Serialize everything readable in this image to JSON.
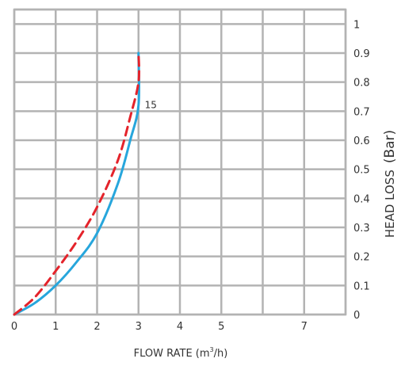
{
  "chart_data": {
    "type": "line",
    "title": "",
    "xlabel": "FLOW RATE (m",
    "xlabel_sup": "3",
    "xlabel_tail": "/h)",
    "ylabel": "HEAD LOSS",
    "ylabel_unit": "(Bar)",
    "xlim": [
      0,
      8
    ],
    "ylim": [
      0,
      1.05
    ],
    "x_ticks": [
      {
        "value": 0,
        "label": "0"
      },
      {
        "value": 1,
        "label": "1"
      },
      {
        "value": 2,
        "label": "2"
      },
      {
        "value": 3,
        "label": "3"
      },
      {
        "value": 4,
        "label": "4"
      },
      {
        "value": 5,
        "label": "5"
      },
      {
        "value": 7,
        "label": "7"
      }
    ],
    "y_ticks": [
      {
        "value": 0,
        "label": "0"
      },
      {
        "value": 0.1,
        "label": "0.1"
      },
      {
        "value": 0.2,
        "label": "0.2"
      },
      {
        "value": 0.3,
        "label": "0.3"
      },
      {
        "value": 0.4,
        "label": "0.4"
      },
      {
        "value": 0.5,
        "label": "0.5"
      },
      {
        "value": 0.6,
        "label": "0.6"
      },
      {
        "value": 0.7,
        "label": "0.7"
      },
      {
        "value": 0.8,
        "label": "0.8"
      },
      {
        "value": 0.9,
        "label": "0.9"
      },
      {
        "value": 1,
        "label": "1"
      }
    ],
    "grid_x": [
      0,
      1,
      2,
      3,
      4,
      5,
      6,
      7,
      8
    ],
    "grid_y": [
      0,
      0.1,
      0.2,
      0.3,
      0.4,
      0.5,
      0.6,
      0.7,
      0.8,
      0.9,
      1,
      1.05
    ],
    "grid": true,
    "series": [
      {
        "color": "#27a6dc",
        "dash": "solid",
        "points": [
          [
            0,
            0
          ],
          [
            0.5,
            0.04
          ],
          [
            1,
            0.1
          ],
          [
            1.5,
            0.18
          ],
          [
            2,
            0.28
          ],
          [
            2.5,
            0.45
          ],
          [
            2.8,
            0.6
          ],
          [
            3,
            0.72
          ],
          [
            3,
            0.9
          ]
        ]
      },
      {
        "color": "#e4232b",
        "dash": "dashed",
        "points": [
          [
            0,
            0
          ],
          [
            0.5,
            0.06
          ],
          [
            1,
            0.15
          ],
          [
            1.5,
            0.25
          ],
          [
            2,
            0.37
          ],
          [
            2.5,
            0.53
          ],
          [
            2.8,
            0.68
          ],
          [
            3,
            0.8
          ],
          [
            3,
            0.9
          ]
        ]
      }
    ],
    "annotations": [
      {
        "text": "15",
        "x": 3.15,
        "y": 0.71
      }
    ]
  }
}
